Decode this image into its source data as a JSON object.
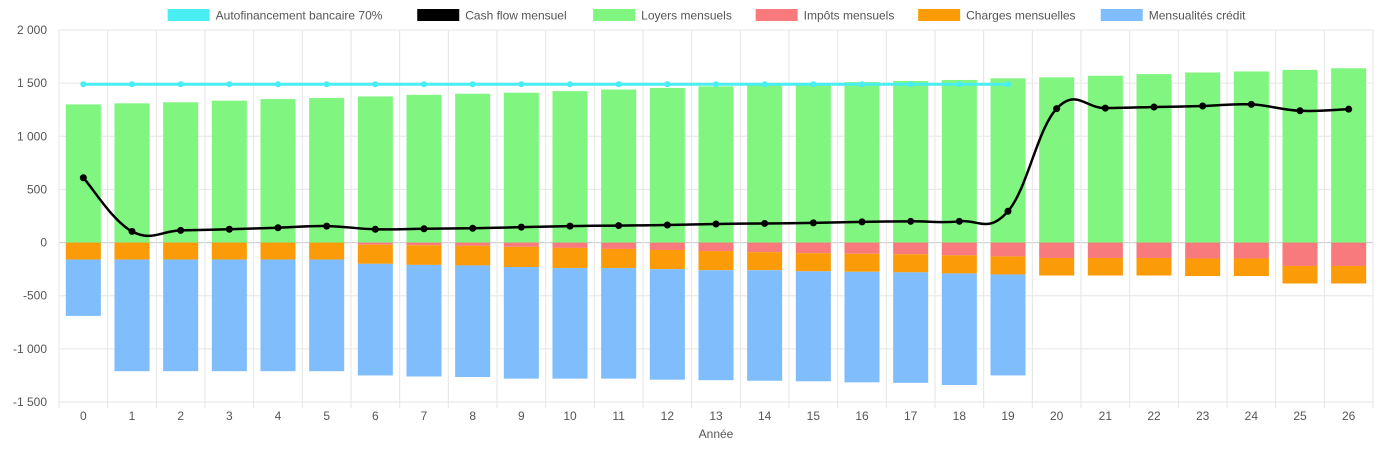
{
  "chart_data": {
    "type": "bar",
    "xlabel": "Année",
    "ylabel": "",
    "ylim": [
      -1500,
      2000
    ],
    "yticks": [
      "2 000",
      "1 500",
      "1 000",
      "500",
      "0",
      "-500",
      "-1 000",
      "-1 500"
    ],
    "grid": true,
    "legend_position": "top",
    "categories": [
      "0",
      "1",
      "2",
      "3",
      "4",
      "5",
      "6",
      "7",
      "8",
      "9",
      "10",
      "11",
      "12",
      "13",
      "14",
      "15",
      "16",
      "17",
      "18",
      "19",
      "20",
      "21",
      "22",
      "23",
      "24",
      "25",
      "26"
    ],
    "bar_series": [
      {
        "name": "Loyers mensuels",
        "color": "#80f57f",
        "values": [
          1300,
          1310,
          1320,
          1335,
          1350,
          1360,
          1375,
          1390,
          1400,
          1410,
          1425,
          1440,
          1455,
          1470,
          1485,
          1500,
          1510,
          1520,
          1530,
          1545,
          1555,
          1570,
          1585,
          1600,
          1610,
          1625,
          1640
        ]
      },
      {
        "name": "Impôts mensuels",
        "color": "#f97a7c",
        "values": [
          0,
          0,
          0,
          0,
          0,
          0,
          -20,
          -25,
          -30,
          -40,
          -50,
          -60,
          -70,
          -80,
          -90,
          -100,
          -105,
          -110,
          -120,
          -130,
          -145,
          -145,
          -145,
          -150,
          -150,
          -220,
          -220
        ]
      },
      {
        "name": "Charges mensuelles",
        "color": "#fa9b07",
        "values": [
          -160,
          -160,
          -160,
          -160,
          -160,
          -160,
          -180,
          -185,
          -185,
          -190,
          -190,
          -180,
          -180,
          -180,
          -170,
          -170,
          -170,
          -170,
          -170,
          -170,
          -165,
          -165,
          -165,
          -165,
          -165,
          -165,
          -165
        ]
      },
      {
        "name": "Mensualités crédit",
        "color": "#80bdfc",
        "values": [
          -530,
          -1050,
          -1050,
          -1050,
          -1050,
          -1050,
          -1050,
          -1050,
          -1050,
          -1050,
          -1040,
          -1040,
          -1040,
          -1035,
          -1040,
          -1035,
          -1040,
          -1040,
          -1050,
          -950,
          0,
          0,
          0,
          0,
          0,
          0,
          0
        ]
      }
    ],
    "line_series": [
      {
        "name": "Autofinancement bancaire 70%",
        "color": "#48eef1",
        "x": [
          "0",
          "1",
          "2",
          "3",
          "4",
          "5",
          "6",
          "7",
          "8",
          "9",
          "10",
          "11",
          "12",
          "13",
          "14",
          "15",
          "16",
          "17",
          "18",
          "19"
        ],
        "values": [
          1490,
          1490,
          1490,
          1490,
          1490,
          1490,
          1490,
          1490,
          1490,
          1490,
          1490,
          1490,
          1490,
          1490,
          1490,
          1490,
          1490,
          1490,
          1490,
          1490
        ]
      },
      {
        "name": "Cash flow mensuel",
        "color": "#000000",
        "x": [
          "0",
          "1",
          "2",
          "3",
          "4",
          "5",
          "6",
          "7",
          "8",
          "9",
          "10",
          "11",
          "12",
          "13",
          "14",
          "15",
          "16",
          "17",
          "18",
          "19",
          "20",
          "21",
          "22",
          "23",
          "24",
          "25",
          "26"
        ],
        "values": [
          610,
          105,
          115,
          125,
          140,
          155,
          125,
          130,
          135,
          145,
          155,
          160,
          165,
          175,
          180,
          185,
          195,
          200,
          200,
          295,
          1260,
          1265,
          1275,
          1285,
          1300,
          1240,
          1255
        ]
      }
    ],
    "legend": [
      {
        "label": "Autofinancement bancaire 70%",
        "color": "#48eef1"
      },
      {
        "label": "Cash flow mensuel",
        "color": "#000000"
      },
      {
        "label": "Loyers mensuels",
        "color": "#80f57f"
      },
      {
        "label": "Impôts mensuels",
        "color": "#f97a7c"
      },
      {
        "label": "Charges mensuelles",
        "color": "#fa9b07"
      },
      {
        "label": "Mensualités crédit",
        "color": "#80bdfc"
      }
    ]
  }
}
